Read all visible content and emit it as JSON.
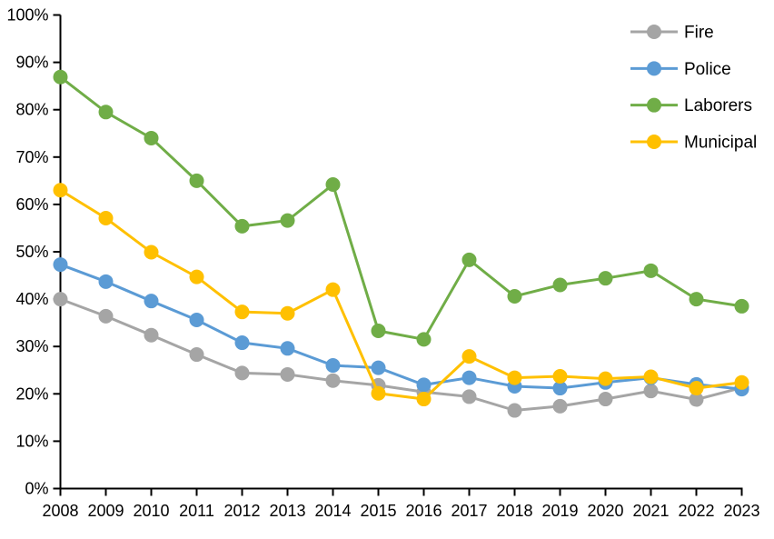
{
  "chart_data": {
    "type": "line",
    "title": "",
    "xlabel": "",
    "ylabel": "",
    "grid": false,
    "legend_position": "top-right-inside",
    "marker": "circle",
    "x": [
      2008,
      2009,
      2010,
      2011,
      2012,
      2013,
      2014,
      2015,
      2016,
      2017,
      2018,
      2019,
      2020,
      2021,
      2022,
      2023
    ],
    "x_labels": [
      "2008",
      "2009",
      "2010",
      "2011",
      "2012",
      "2013",
      "2014",
      "2015",
      "2016",
      "2017",
      "2018",
      "2019",
      "2020",
      "2021",
      "2022",
      "2023"
    ],
    "y_axis": {
      "min": 0,
      "max": 100,
      "step": 10,
      "format": "percent",
      "tick_labels": [
        "0%",
        "10%",
        "20%",
        "30%",
        "40%",
        "50%",
        "60%",
        "70%",
        "80%",
        "90%",
        "100%"
      ]
    },
    "axis_color": "#000000",
    "series": [
      {
        "name": "Fire",
        "color": "#A5A5A5",
        "values": [
          40.0,
          36.4,
          32.4,
          28.3,
          24.4,
          24.1,
          22.8,
          21.8,
          20.4,
          19.4,
          16.5,
          17.4,
          18.9,
          20.6,
          18.8,
          21.3
        ]
      },
      {
        "name": "Police",
        "color": "#5B9BD5",
        "values": [
          47.3,
          43.7,
          39.6,
          35.6,
          30.8,
          29.6,
          26.0,
          25.5,
          21.9,
          23.4,
          21.6,
          21.2,
          22.4,
          23.4,
          22.0,
          21.0
        ]
      },
      {
        "name": "Laborers",
        "color": "#70AD47",
        "values": [
          86.9,
          79.5,
          74.0,
          65.0,
          55.4,
          56.6,
          64.2,
          33.3,
          31.5,
          48.3,
          40.6,
          43.0,
          44.4,
          46.0,
          40.0,
          38.5
        ]
      },
      {
        "name": "Municipal",
        "color": "#FFC000",
        "values": [
          63.0,
          57.1,
          49.9,
          44.7,
          37.3,
          37.0,
          42.0,
          20.1,
          18.9,
          27.9,
          23.4,
          23.7,
          23.2,
          23.6,
          21.2,
          22.4
        ]
      }
    ]
  }
}
